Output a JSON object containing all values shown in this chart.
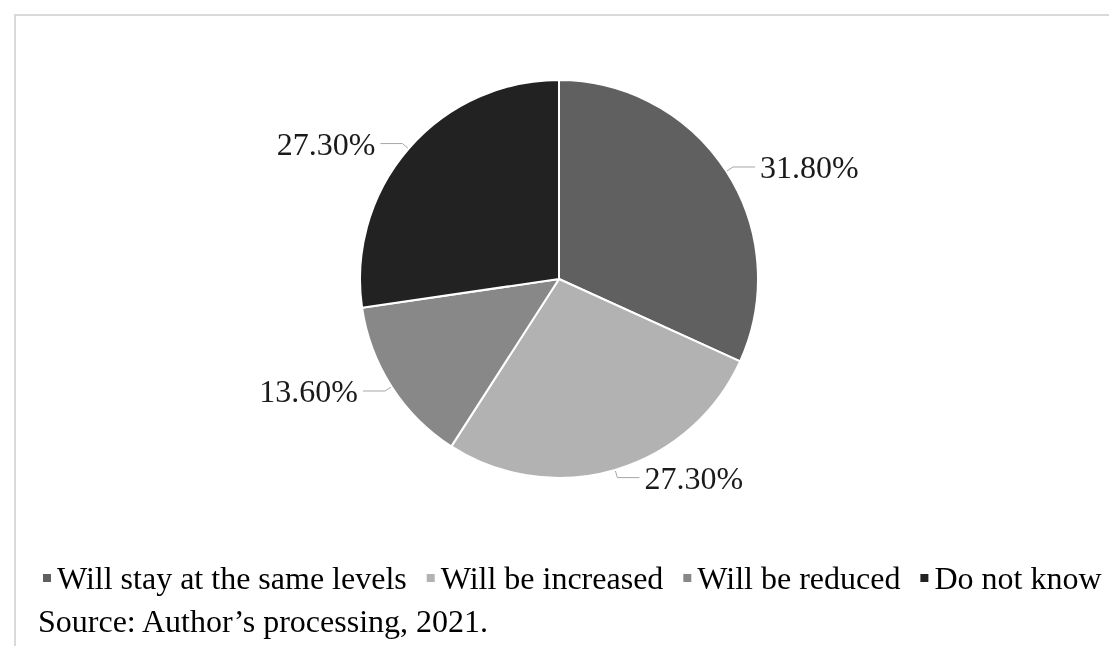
{
  "chart_data": {
    "type": "pie",
    "categories": [
      "Will stay at the same levels",
      "Will be increased",
      "Will be reduced",
      "Do not know"
    ],
    "values": [
      31.8,
      27.3,
      13.6,
      27.3
    ],
    "colors": [
      "#606060",
      "#b2b2b2",
      "#888888",
      "#222222"
    ],
    "value_labels": [
      "31.80%",
      "27.30%",
      "13.60%",
      "27.30%"
    ],
    "legend": "bottom",
    "annotations": [
      "Source: Author’s processing, 2021."
    ]
  }
}
